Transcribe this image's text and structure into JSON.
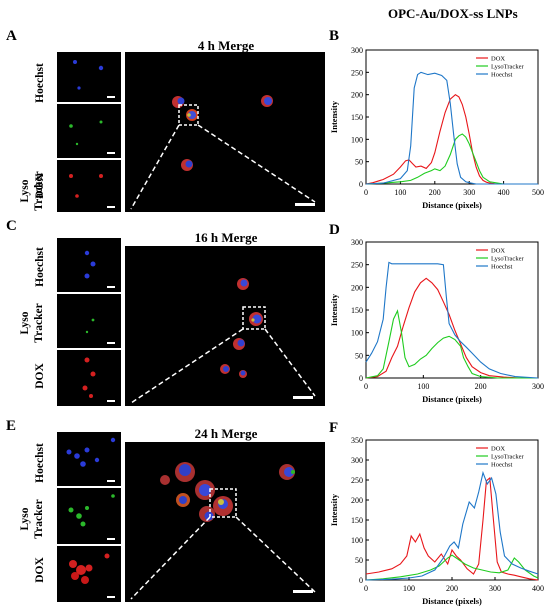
{
  "figure_title": "OPC-Au/DOX-ss LNPs",
  "row_labels": {
    "hoechst": "Hoechst",
    "lyso_line1": "Lyso",
    "lyso_line2": "Tracker",
    "dox": "DOX"
  },
  "panels": {
    "A": {
      "letter": "A",
      "merge_title": "4 h Merge"
    },
    "B": {
      "letter": "B"
    },
    "C": {
      "letter": "C",
      "merge_title": "16 h Merge"
    },
    "D": {
      "letter": "D"
    },
    "E": {
      "letter": "E",
      "merge_title": "24 h Merge"
    },
    "F": {
      "letter": "F"
    }
  },
  "colors": {
    "dox": "#e8161a",
    "lyso": "#1fcc1f",
    "hoechst": "#1f77c8"
  },
  "chart_data": [
    {
      "type": "line",
      "panel": "B",
      "xlabel": "Distance (pixels)",
      "ylabel": "Intensity",
      "xlim": [
        0,
        500
      ],
      "ylim": [
        0,
        300
      ],
      "xticks": [
        0,
        100,
        200,
        300,
        400,
        500
      ],
      "yticks": [
        0,
        50,
        100,
        150,
        200,
        250,
        300
      ],
      "legend_position": "top-right",
      "series": [
        {
          "name": "DOX",
          "color": "#e8161a",
          "x": [
            0,
            20,
            50,
            80,
            100,
            115,
            125,
            135,
            145,
            160,
            175,
            190,
            200,
            215,
            230,
            245,
            260,
            270,
            280,
            290,
            300,
            310,
            320,
            330,
            340,
            350,
            360,
            380,
            400,
            450,
            500
          ],
          "y": [
            0,
            3,
            10,
            22,
            38,
            52,
            54,
            46,
            38,
            40,
            35,
            48,
            70,
            118,
            160,
            190,
            200,
            195,
            178,
            150,
            112,
            70,
            38,
            18,
            8,
            4,
            2,
            0,
            0,
            0,
            0
          ]
        },
        {
          "name": "LysoTracker",
          "color": "#1fcc1f",
          "x": [
            0,
            50,
            100,
            130,
            150,
            170,
            190,
            200,
            215,
            230,
            245,
            260,
            270,
            280,
            290,
            300,
            310,
            320,
            330,
            340,
            360,
            400,
            500
          ],
          "y": [
            0,
            2,
            5,
            8,
            15,
            24,
            30,
            34,
            30,
            40,
            66,
            100,
            108,
            112,
            105,
            90,
            70,
            50,
            30,
            15,
            5,
            0,
            0
          ]
        },
        {
          "name": "Hoechst",
          "color": "#1f77c8",
          "x": [
            0,
            50,
            100,
            120,
            130,
            140,
            150,
            160,
            180,
            200,
            220,
            235,
            245,
            255,
            265,
            275,
            290,
            300,
            320,
            400,
            500
          ],
          "y": [
            0,
            2,
            12,
            30,
            85,
            215,
            245,
            250,
            245,
            248,
            243,
            232,
            180,
            110,
            45,
            15,
            5,
            3,
            0,
            0,
            0
          ]
        }
      ]
    },
    {
      "type": "line",
      "panel": "D",
      "xlabel": "Distance (pixels)",
      "ylabel": "Intensity",
      "xlim": [
        0,
        300
      ],
      "ylim": [
        0,
        300
      ],
      "xticks": [
        0,
        100,
        200,
        300
      ],
      "yticks": [
        0,
        50,
        100,
        150,
        200,
        250,
        300
      ],
      "legend_position": "top-right",
      "series": [
        {
          "name": "DOX",
          "color": "#e8161a",
          "x": [
            0,
            20,
            35,
            45,
            55,
            65,
            75,
            85,
            95,
            105,
            115,
            125,
            135,
            145,
            155,
            165,
            175,
            185,
            200,
            215,
            240,
            270,
            300
          ],
          "y": [
            0,
            3,
            15,
            45,
            70,
            115,
            155,
            190,
            210,
            220,
            210,
            195,
            168,
            140,
            105,
            75,
            45,
            25,
            12,
            5,
            2,
            0,
            0
          ]
        },
        {
          "name": "LysoTracker",
          "color": "#1fcc1f",
          "x": [
            0,
            20,
            30,
            40,
            48,
            55,
            62,
            68,
            75,
            85,
            95,
            105,
            115,
            125,
            135,
            145,
            155,
            165,
            170,
            178,
            185,
            200,
            230,
            300
          ],
          "y": [
            0,
            5,
            20,
            80,
            130,
            148,
            100,
            45,
            25,
            30,
            42,
            50,
            65,
            78,
            88,
            92,
            85,
            70,
            45,
            25,
            10,
            3,
            0,
            0
          ]
        },
        {
          "name": "Hoechst",
          "color": "#1f77c8",
          "x": [
            0,
            5,
            10,
            20,
            30,
            35,
            40,
            45,
            55,
            70,
            90,
            110,
            125,
            135,
            140,
            145,
            155,
            165,
            175,
            185,
            200,
            215,
            235,
            260,
            300
          ],
          "y": [
            35,
            45,
            55,
            80,
            130,
            200,
            255,
            252,
            252,
            252,
            252,
            252,
            252,
            250,
            180,
            120,
            95,
            80,
            68,
            55,
            35,
            20,
            10,
            3,
            0
          ]
        }
      ]
    },
    {
      "type": "line",
      "panel": "F",
      "xlabel": "Distance (pixels)",
      "ylabel": "Intensity",
      "xlim": [
        0,
        400
      ],
      "ylim": [
        0,
        350
      ],
      "xticks": [
        0,
        100,
        200,
        300,
        400
      ],
      "yticks": [
        0,
        50,
        100,
        150,
        200,
        250,
        300,
        350
      ],
      "legend_position": "top-right",
      "series": [
        {
          "name": "DOX",
          "color": "#e8161a",
          "x": [
            0,
            30,
            60,
            80,
            95,
            105,
            115,
            125,
            135,
            145,
            160,
            175,
            190,
            200,
            210,
            220,
            235,
            250,
            262,
            272,
            280,
            288,
            295,
            305,
            315,
            330,
            345,
            360,
            380,
            400
          ],
          "y": [
            15,
            20,
            28,
            40,
            60,
            110,
            95,
            115,
            80,
            60,
            45,
            65,
            40,
            75,
            60,
            50,
            28,
            15,
            40,
            150,
            248,
            255,
            165,
            45,
            20,
            15,
            12,
            8,
            3,
            0
          ]
        },
        {
          "name": "LysoTracker",
          "color": "#1fcc1f",
          "x": [
            0,
            40,
            80,
            120,
            150,
            170,
            190,
            200,
            210,
            230,
            250,
            270,
            290,
            310,
            330,
            345,
            355,
            370,
            390,
            400
          ],
          "y": [
            0,
            3,
            8,
            15,
            25,
            35,
            55,
            62,
            55,
            40,
            30,
            25,
            20,
            18,
            25,
            55,
            45,
            25,
            10,
            5
          ]
        },
        {
          "name": "Hoechst",
          "color": "#1f77c8",
          "x": [
            0,
            60,
            100,
            130,
            160,
            180,
            195,
            205,
            215,
            225,
            240,
            252,
            262,
            272,
            282,
            292,
            302,
            312,
            322,
            340,
            360,
            380,
            400
          ],
          "y": [
            0,
            2,
            5,
            10,
            25,
            55,
            85,
            95,
            80,
            140,
            195,
            180,
            220,
            268,
            240,
            255,
            215,
            120,
            60,
            40,
            30,
            22,
            15
          ]
        }
      ]
    }
  ]
}
